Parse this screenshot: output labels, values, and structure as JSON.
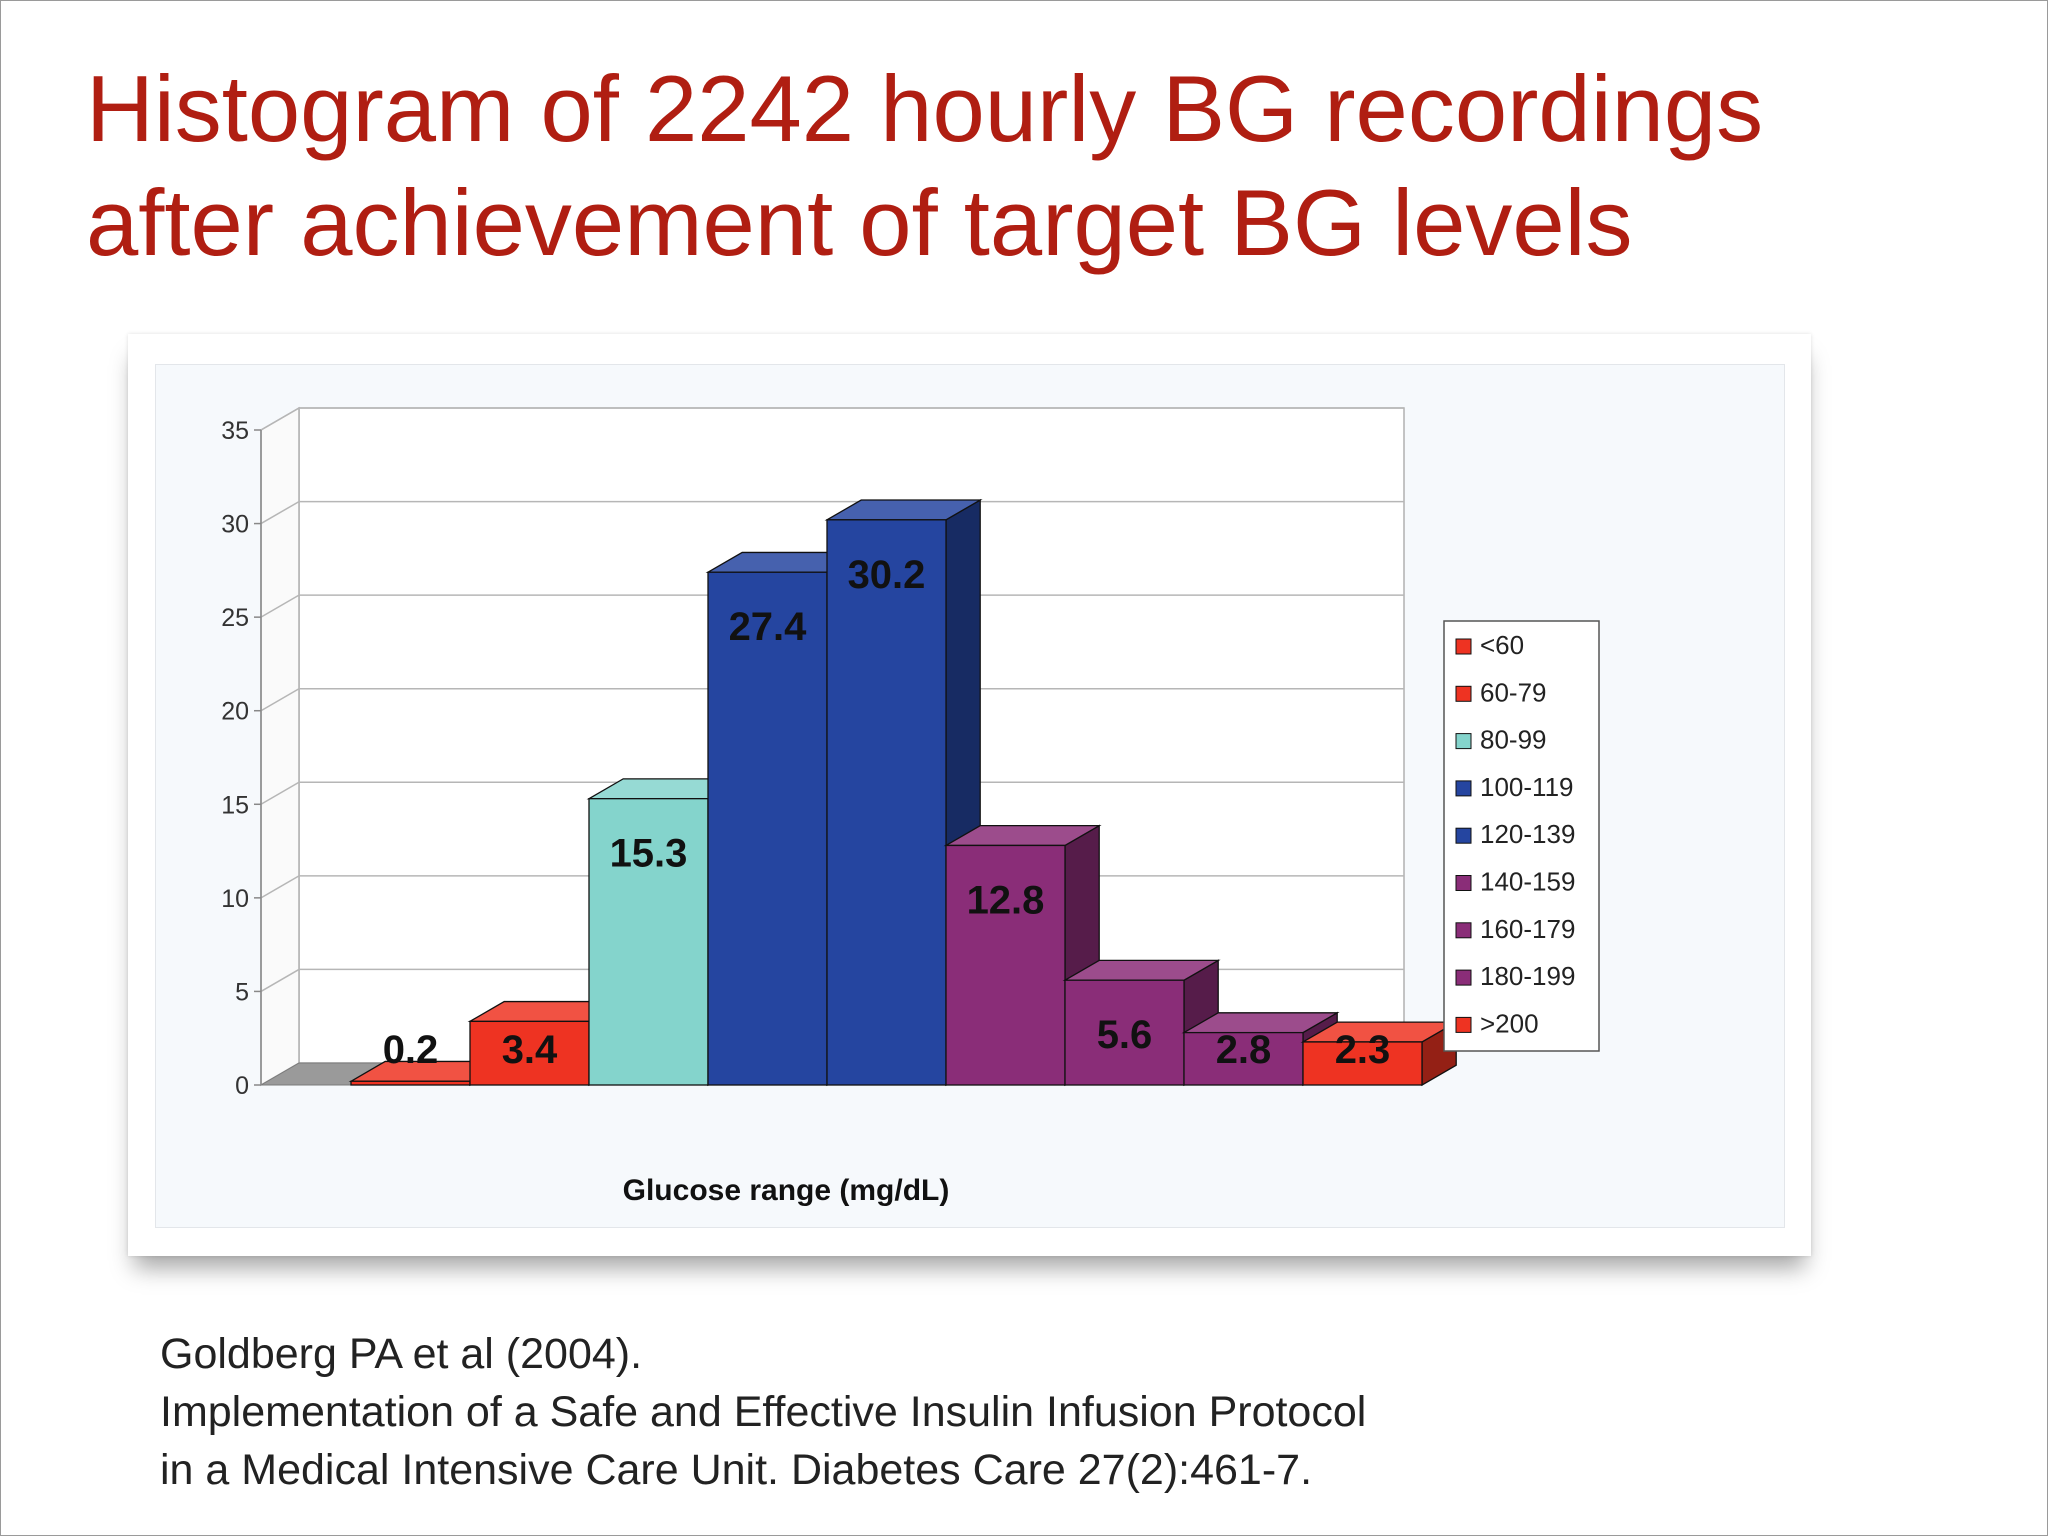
{
  "slide": {
    "title_lines": [
      "Histogram of 2242 hourly BG recordings",
      "after achievement of target BG levels"
    ],
    "title_color": "#b01e12",
    "citation_lines": [
      "Goldberg PA et al (2004).",
      "Implementation of a Safe and Effective Insulin Infusion Protocol",
      "in a Medical Intensive Care Unit. Diabetes Care 27(2):461-7."
    ]
  },
  "chart_data": {
    "type": "bar",
    "style": "3d-columns",
    "title": "",
    "xlabel": "Glucose range (mg/dL)",
    "ylabel": "",
    "ylim": [
      0,
      35
    ],
    "yticks": [
      0,
      5,
      10,
      15,
      20,
      25,
      30,
      35
    ],
    "grid": true,
    "legend_position": "right",
    "categories": [
      "<60",
      "60-79",
      "80-99",
      "100-119",
      "120-139",
      "140-159",
      "160-179",
      "180-199",
      ">200"
    ],
    "values": [
      0.2,
      3.4,
      15.3,
      27.4,
      30.2,
      12.8,
      5.6,
      2.8,
      2.3
    ],
    "data_labels": [
      "0.2",
      "3.4",
      "15.3",
      "27.4",
      "30.2",
      "12.8",
      "5.6",
      "2.8",
      "2.3"
    ],
    "colors": [
      "#ee3322",
      "#ee3322",
      "#84d4cc",
      "#2545a0",
      "#2545a0",
      "#8a2d78",
      "#8a2d78",
      "#8a2d78",
      "#ee3322"
    ]
  }
}
